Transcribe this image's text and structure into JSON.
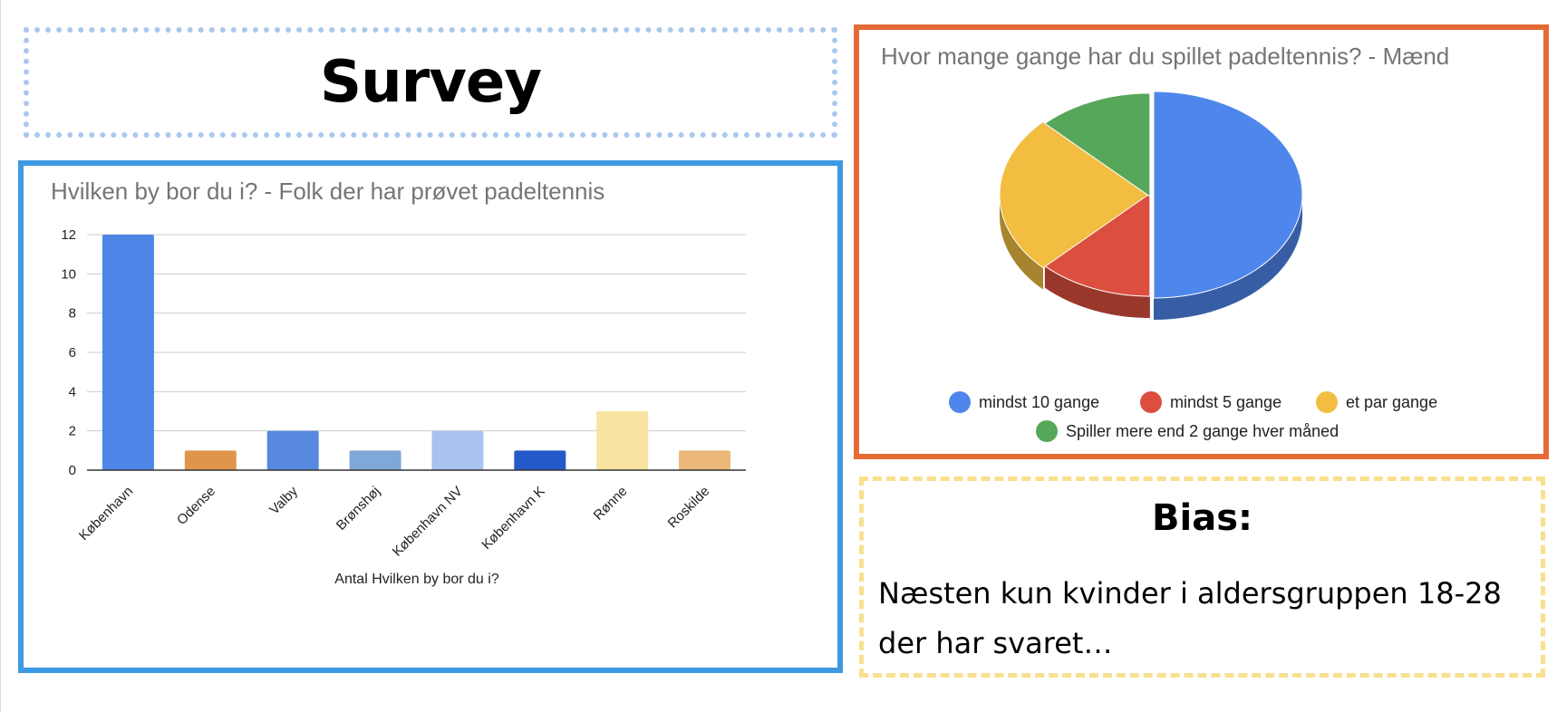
{
  "page": {
    "title": "Survey",
    "bias_title": "Bias:",
    "bias_text": "Næsten kun kvinder i aldersgruppen 18-28 der har svaret…"
  },
  "colors": {
    "survey_border": "#aac8ee",
    "bar_border": "#3d9ae3",
    "pie_border": "#e46b36",
    "bias_border": "#f8e08e"
  },
  "chart_data": [
    {
      "type": "bar",
      "title": "Hvilken by bor du i? - Folk der har prøvet padeltennis",
      "xlabel": "Antal Hvilken by bor du i?",
      "ylabel": "",
      "categories": [
        "København",
        "Odense",
        "Valby",
        "Brønshøj",
        "København NV",
        "København K",
        "Rønne",
        "Roskilde"
      ],
      "values": [
        12,
        1,
        2,
        1,
        2,
        1,
        3,
        1
      ],
      "colors": [
        "#4e86e8",
        "#e0964a",
        "#5889e0",
        "#7fa8d8",
        "#a9c2f0",
        "#2559c9",
        "#f9e3a0",
        "#ecb87a"
      ],
      "ylim": [
        0,
        12
      ],
      "yticks": [
        0,
        2,
        4,
        6,
        8,
        10,
        12
      ],
      "grid": true,
      "legend": "none"
    },
    {
      "type": "pie",
      "title": "Hvor mange gange har du spillet padeltennis? - Mænd",
      "style": "3d",
      "slices": [
        {
          "label": "mindst 10 gange",
          "value": 50,
          "color": "#4f86ec"
        },
        {
          "label": "mindst 5 gange",
          "value": 12.5,
          "color": "#dc4e3e"
        },
        {
          "label": "et par gange",
          "value": 25,
          "color": "#f2bd41"
        },
        {
          "label": "Spiller mere end 2 gange hver måned",
          "value": 12.5,
          "color": "#57a75b"
        }
      ],
      "legend": "bottom"
    }
  ]
}
